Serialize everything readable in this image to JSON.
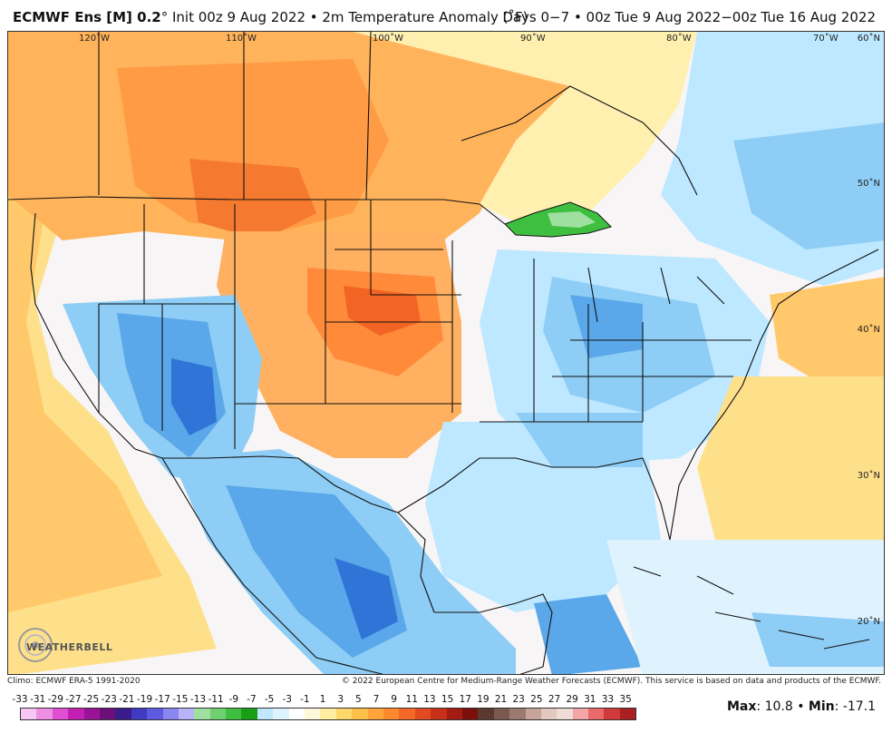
{
  "header": {
    "model": "ECMWF Ens [M] 0.2",
    "init": "° Init 00z 9 Aug 2022 • 2m Temperature Anomaly (˚F)",
    "range": "Days 0−7 • 00z Tue 9 Aug 2022−00z Tue 16 Aug 2022"
  },
  "map": {
    "lon_labels": [
      "120˚W",
      "110˚W",
      "100˚W",
      "90˚W",
      "80˚W",
      "70˚W",
      "60˚N"
    ],
    "lat_labels": [
      "50˚N",
      "40˚N",
      "30˚N",
      "20˚N"
    ],
    "logo_text": "WEATHERBELL"
  },
  "footer": {
    "climo": "Climo: ECMWF ERA-5 1991-2020",
    "copyright": "© 2022 European Centre for Medium-Range Weather Forecasts (ECMWF). This service is based on data and products of the ECMWF."
  },
  "colorbar": {
    "ticks": [
      "-33",
      "-31",
      "-29",
      "-27",
      "-25",
      "-23",
      "-21",
      "-19",
      "-17",
      "-15",
      "-13",
      "-11",
      "-9",
      "-7",
      "-5",
      "-3",
      "-1",
      "1",
      "3",
      "5",
      "7",
      "9",
      "11",
      "13",
      "15",
      "17",
      "19",
      "21",
      "23",
      "25",
      "27",
      "29",
      "31",
      "33",
      "35"
    ],
    "colors": [
      "#f7c6f2",
      "#ee8fe4",
      "#e04fd3",
      "#c41fb4",
      "#9a1396",
      "#6d0f78",
      "#3a1b8a",
      "#3f3ac0",
      "#5c5be0",
      "#8a86ef",
      "#b9b3f7",
      "#9fe0a0",
      "#6fd06f",
      "#3fbf3f",
      "#179f17",
      "#bfe8ff",
      "#dff3ff",
      "#ffffff",
      "#fff8d8",
      "#ffeda0",
      "#ffd76b",
      "#ffc04a",
      "#ffa43a",
      "#ff8a2e",
      "#f56826",
      "#e24a1f",
      "#c8301a",
      "#a41b14",
      "#7a0f0c",
      "#5a3a30",
      "#7a5a50",
      "#9b7a70",
      "#c7a49a",
      "#e3c9c0",
      "#f0dcd6",
      "#f4a6a6",
      "#e86a6a",
      "#d03a3a",
      "#aa1f1f"
    ],
    "max_label": "Max",
    "max_value": ": 10.8 • ",
    "min_label": "Min",
    "min_value": ": -17.1"
  }
}
